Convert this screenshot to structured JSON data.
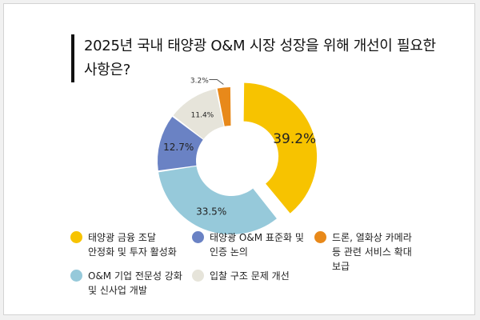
{
  "title": "2025년 국내 태양광 O&M 시장 성장을 위해 개선이 필요한\n사항은?",
  "colors": {
    "finance": "#f7c300",
    "om_tech": "#96c9da",
    "standard": "#6a82c4",
    "bidding": "#e6e4da",
    "drone": "#e8891a"
  },
  "chart_data": {
    "type": "pie",
    "style": "donut with exploded first slice",
    "labels": [
      "태양광 금융 조달\n안정화 및 투자 활성화",
      "O&M 기업 전문성 강화\n및 신사업 개발",
      "태양광 O&M 표준화 및\n인증 논의",
      "입찰 구조 문제 개선",
      "드론, 열화상 카메라\n등 관련 서비스 확대\n보급"
    ],
    "values": [
      39.2,
      33.5,
      12.7,
      11.4,
      3.2
    ],
    "value_labels": [
      "39.2%",
      "33.5%",
      "12.7%",
      "11.4%",
      "3.2%"
    ],
    "legend_position": "bottom"
  }
}
